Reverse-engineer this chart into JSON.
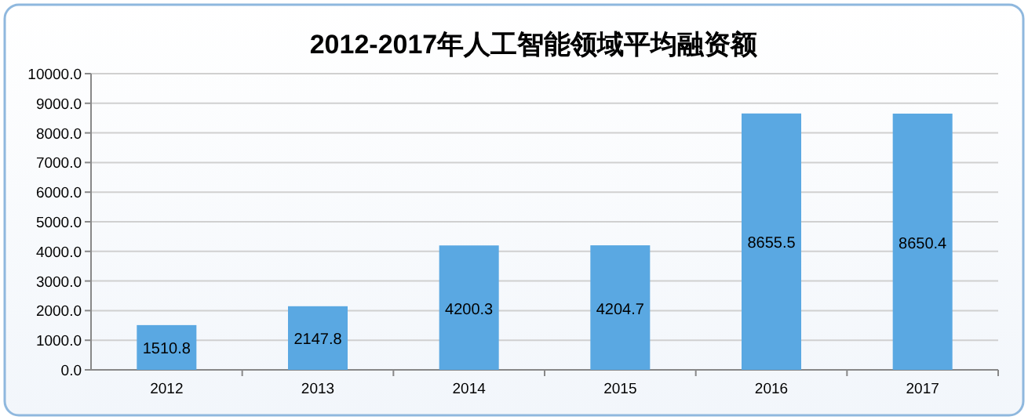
{
  "chart_data": {
    "type": "bar",
    "title": "2012-2017年人工智能领域平均融资额",
    "categories": [
      "2012",
      "2013",
      "2014",
      "2015",
      "2016",
      "2017"
    ],
    "values": [
      1510.8,
      2147.8,
      4200.3,
      4204.7,
      8655.5,
      8650.4
    ],
    "color": "#5aa8e2",
    "ylim": [
      0,
      10000
    ],
    "yticks": [
      {
        "value": 0,
        "label": "0.0"
      },
      {
        "value": 1000,
        "label": "1000.0"
      },
      {
        "value": 2000,
        "label": "2000.0"
      },
      {
        "value": 3000,
        "label": "3000.0"
      },
      {
        "value": 4000,
        "label": "4000.0"
      },
      {
        "value": 5000,
        "label": "5000.0"
      },
      {
        "value": 6000,
        "label": "6000.0"
      },
      {
        "value": 7000,
        "label": "7000.0"
      },
      {
        "value": 8000,
        "label": "8000.0"
      },
      {
        "value": 9000,
        "label": "9000.0"
      },
      {
        "value": 10000,
        "label": "10000.0"
      }
    ],
    "grid": "y",
    "data_labels": true
  }
}
